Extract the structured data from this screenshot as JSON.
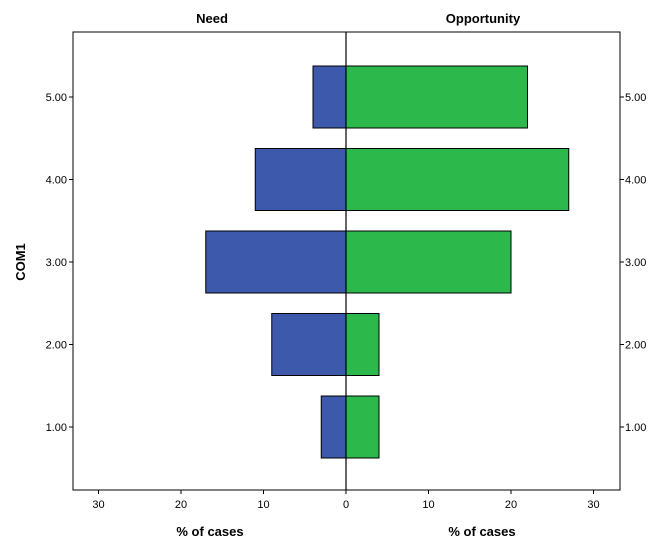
{
  "chart_data": {
    "type": "bar",
    "subtype": "population-pyramid",
    "ylabel": "COM1",
    "categories": [
      "5.00",
      "4.00",
      "3.00",
      "2.00",
      "1.00"
    ],
    "xlim": [
      0,
      30
    ],
    "x_ticks": [
      "30",
      "20",
      "10",
      "0",
      "10",
      "20",
      "30"
    ],
    "panels": [
      {
        "name": "Need",
        "xlabel": "% of cases",
        "color": "#3D59AB",
        "direction": "left",
        "values": [
          4,
          11,
          17,
          9,
          3
        ]
      },
      {
        "name": "Opportunity",
        "xlabel": "% of cases",
        "color": "#2DB84B",
        "direction": "right",
        "values": [
          22,
          27,
          20,
          4,
          4
        ]
      }
    ],
    "grid": false,
    "legend": "none"
  }
}
